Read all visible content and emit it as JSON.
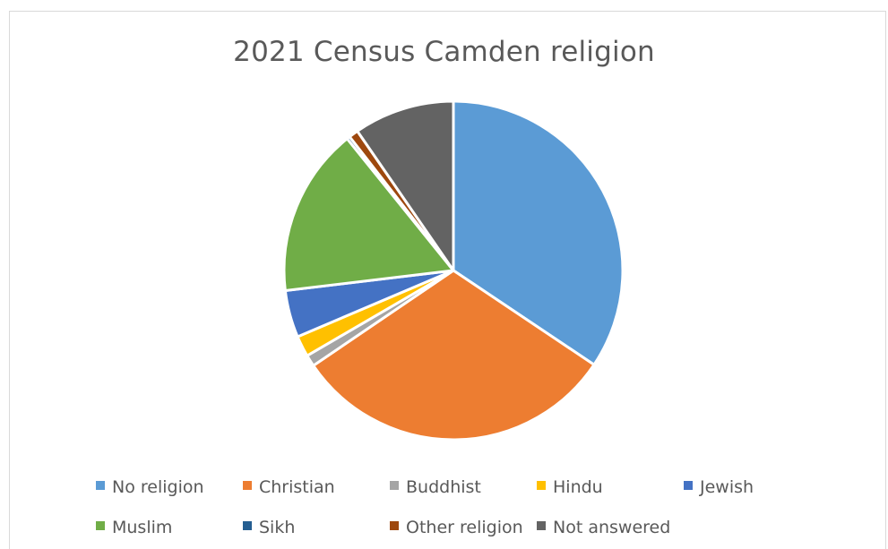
{
  "chart_data": {
    "type": "pie",
    "title": "2021 Census Camden religion",
    "categories": [
      "No religion",
      "Christian",
      "Buddhist",
      "Hindu",
      "Jewish",
      "Muslim",
      "Sikh",
      "Other religion",
      "Not answered"
    ],
    "values": [
      34.4,
      31.1,
      1.1,
      2.0,
      4.5,
      16.1,
      0.3,
      0.9,
      9.6
    ],
    "colors": [
      "#5b9bd5",
      "#ed7d31",
      "#a5a5a5",
      "#ffc000",
      "#4472c4",
      "#70ad47",
      "#255e91",
      "#9e480e",
      "#636363"
    ],
    "legend_position": "bottom"
  }
}
